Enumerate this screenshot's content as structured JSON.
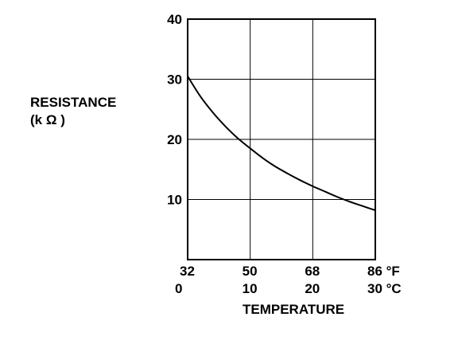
{
  "chart_data": {
    "type": "line",
    "title": "",
    "ylabel": "RESISTANCE",
    "ylabel_unit": "(k Ω )",
    "xlabel": "TEMPERATURE",
    "ylim": [
      0,
      40
    ],
    "xlim": [
      0,
      30
    ],
    "grid": true,
    "y_ticks": [
      {
        "value": 10,
        "label": "10"
      },
      {
        "value": 20,
        "label": "20"
      },
      {
        "value": 30,
        "label": "30"
      },
      {
        "value": 40,
        "label": "40"
      }
    ],
    "x_ticks_f": [
      {
        "value": 0,
        "label": "32"
      },
      {
        "value": 10,
        "label": "50"
      },
      {
        "value": 20,
        "label": "68"
      },
      {
        "value": 30,
        "label": "86 °F"
      }
    ],
    "x_ticks_c": [
      {
        "value": 0,
        "label": "0"
      },
      {
        "value": 10,
        "label": "10"
      },
      {
        "value": 20,
        "label": "20"
      },
      {
        "value": 30,
        "label": "30 °C"
      }
    ],
    "series": [
      {
        "x": [
          0,
          2,
          4,
          6,
          8,
          10,
          12,
          14,
          16,
          18,
          20,
          22,
          24,
          26,
          28,
          30
        ],
        "values": [
          30.5,
          27.2,
          24.5,
          22.2,
          20.2,
          18.5,
          16.9,
          15.5,
          14.3,
          13.2,
          12.2,
          11.3,
          10.4,
          9.6,
          8.9,
          8.2
        ]
      }
    ],
    "colors": {
      "line": "#000000",
      "grid": "#000000",
      "axis": "#000000"
    }
  }
}
